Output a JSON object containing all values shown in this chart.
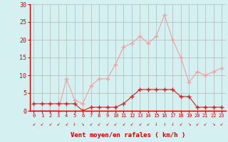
{
  "hours": [
    0,
    1,
    2,
    3,
    4,
    5,
    6,
    7,
    8,
    9,
    10,
    11,
    12,
    13,
    14,
    15,
    16,
    17,
    18,
    19,
    20,
    21,
    22,
    23
  ],
  "wind_avg": [
    2,
    2,
    2,
    2,
    2,
    2,
    0,
    1,
    1,
    1,
    1,
    2,
    4,
    6,
    6,
    6,
    6,
    6,
    4,
    4,
    1,
    1,
    1,
    1
  ],
  "wind_gust": [
    0,
    0,
    0,
    0,
    9,
    3,
    2,
    7,
    9,
    9,
    13,
    18,
    19,
    21,
    19,
    21,
    27,
    20,
    15,
    8,
    11,
    10,
    11,
    12
  ],
  "xlabel": "Vent moyen/en rafales ( km/h )",
  "ylim": [
    0,
    30
  ],
  "yticks": [
    0,
    5,
    10,
    15,
    20,
    25,
    30
  ],
  "bg_color": "#d5f0f0",
  "grid_color": "#aaaaaa",
  "avg_color": "#cc2222",
  "gust_color": "#f0a0a0",
  "axis_color": "#cc0000",
  "tick_color": "#cc0000",
  "label_color": "#cc0000",
  "arrow_chars": [
    "↙",
    "↙",
    "↙",
    "↙",
    "↙",
    "↓",
    "↘",
    "↙",
    "↙",
    "↙",
    "↙",
    "↙",
    "↙",
    "↙",
    "↙",
    "↓",
    "↓",
    "↓",
    "↙",
    "↘",
    "↙",
    "↙",
    "↘",
    "↙"
  ]
}
